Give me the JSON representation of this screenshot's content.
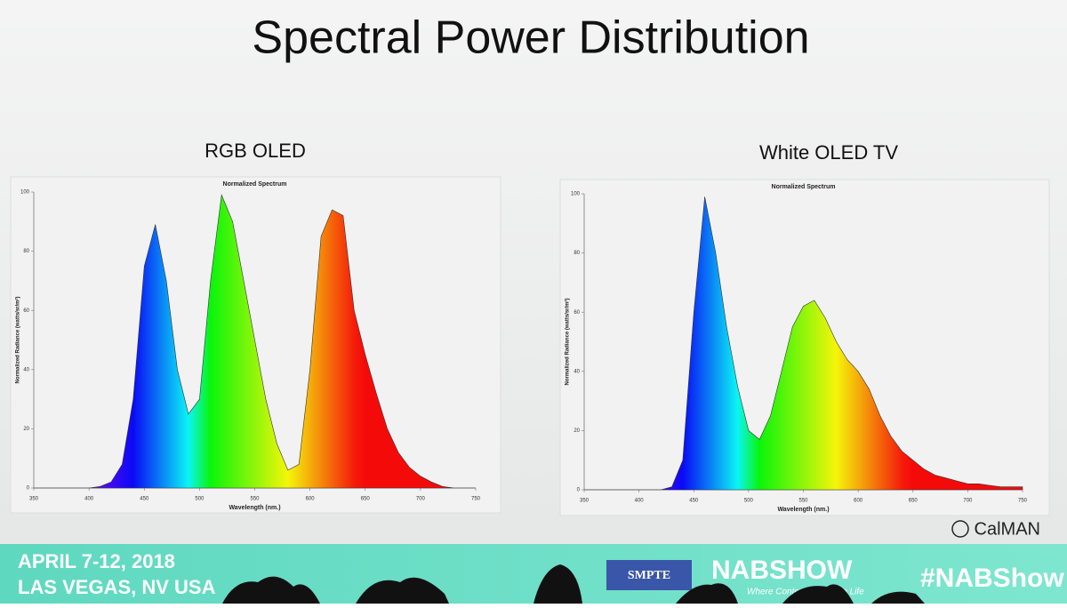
{
  "slide": {
    "title": "Spectral Power Distribution",
    "credit": "CalMAN",
    "banner": {
      "dates": "APRIL 7-12, 2018",
      "location": "LAS VEGAS, NV USA",
      "logo": "SMPTE",
      "show": "NABSHOW",
      "tagline": "Where Content Comes to Life",
      "hashtag": "#NABShow"
    }
  },
  "chart_data": [
    {
      "type": "area",
      "panel_title": "RGB OLED",
      "title": "Normalized Spectrum",
      "x_label": "Wavelength (nm.)",
      "y_label": "Normalized Radiance (watts/sr/m²)",
      "x": [
        350,
        360,
        370,
        380,
        390,
        400,
        410,
        420,
        430,
        440,
        450,
        460,
        470,
        480,
        490,
        500,
        510,
        520,
        530,
        540,
        550,
        560,
        570,
        580,
        590,
        600,
        610,
        620,
        630,
        640,
        650,
        660,
        670,
        680,
        690,
        700,
        710,
        720,
        730,
        740,
        750
      ],
      "values": [
        0,
        0,
        0,
        0,
        0,
        0,
        0.5,
        2,
        8,
        30,
        75,
        89,
        70,
        40,
        25,
        30,
        70,
        99,
        90,
        70,
        50,
        30,
        15,
        6,
        8,
        40,
        85,
        94,
        92,
        60,
        45,
        32,
        20,
        12,
        7,
        4,
        2,
        0.5,
        0,
        0,
        0
      ],
      "xlim": [
        350,
        750
      ],
      "xticks": [
        350,
        400,
        450,
        500,
        550,
        600,
        650,
        700,
        750
      ],
      "ylim": [
        0,
        100
      ],
      "yticks": [
        0,
        20,
        40,
        60,
        80,
        100
      ],
      "fill": "spectrum"
    },
    {
      "type": "area",
      "panel_title": "White OLED TV",
      "title": "Normalized Spectrum",
      "x_label": "Wavelength (nm.)",
      "y_label": "Normalized Radiance (watts/sr/m²)",
      "x": [
        350,
        360,
        370,
        380,
        390,
        400,
        410,
        420,
        430,
        440,
        450,
        460,
        470,
        480,
        490,
        500,
        510,
        520,
        530,
        540,
        550,
        560,
        570,
        580,
        590,
        600,
        610,
        620,
        630,
        640,
        650,
        660,
        670,
        680,
        690,
        700,
        710,
        720,
        730,
        740,
        750
      ],
      "values": [
        0,
        0,
        0,
        0,
        0,
        0,
        0,
        0,
        1,
        10,
        60,
        99,
        80,
        55,
        35,
        20,
        17,
        25,
        40,
        55,
        62,
        64,
        58,
        50,
        44,
        40,
        34,
        25,
        18,
        13,
        10,
        7,
        5,
        4,
        3,
        2,
        2,
        1.5,
        1,
        1,
        1
      ],
      "xlim": [
        350,
        750
      ],
      "xticks": [
        350,
        400,
        450,
        500,
        550,
        600,
        650,
        700,
        750
      ],
      "ylim": [
        0,
        100
      ],
      "yticks": [
        0,
        20,
        40,
        60,
        80,
        100
      ],
      "fill": "spectrum"
    }
  ]
}
